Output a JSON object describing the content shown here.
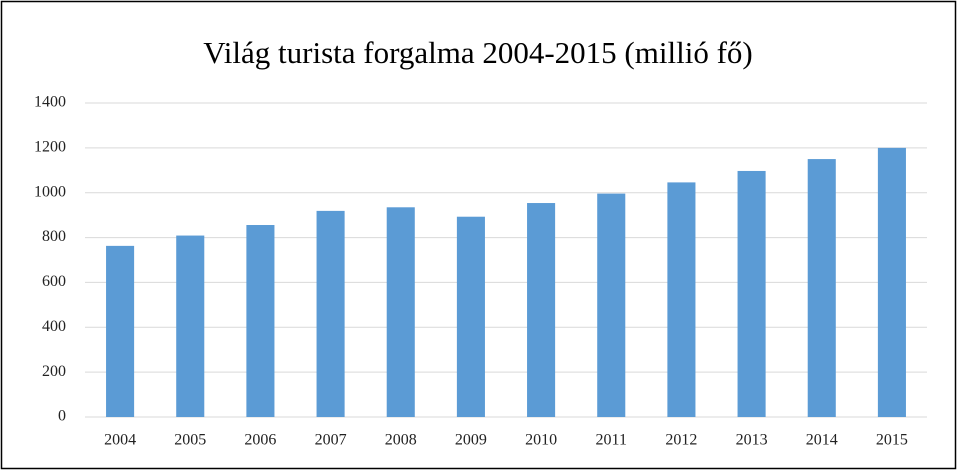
{
  "chart_data": {
    "type": "bar",
    "title": "Világ turista forgalma 2004-2015 (millió fő)",
    "categories": [
      "2004",
      "2005",
      "2006",
      "2007",
      "2008",
      "2009",
      "2010",
      "2011",
      "2012",
      "2013",
      "2014",
      "2015"
    ],
    "values": [
      763,
      809,
      856,
      919,
      935,
      893,
      954,
      996,
      1046,
      1097,
      1150,
      1200
    ],
    "color": "#5b9bd5",
    "ylim": [
      0,
      1400
    ],
    "yticks": [
      0,
      200,
      400,
      600,
      800,
      1000,
      1200,
      1400
    ],
    "grid": true
  }
}
